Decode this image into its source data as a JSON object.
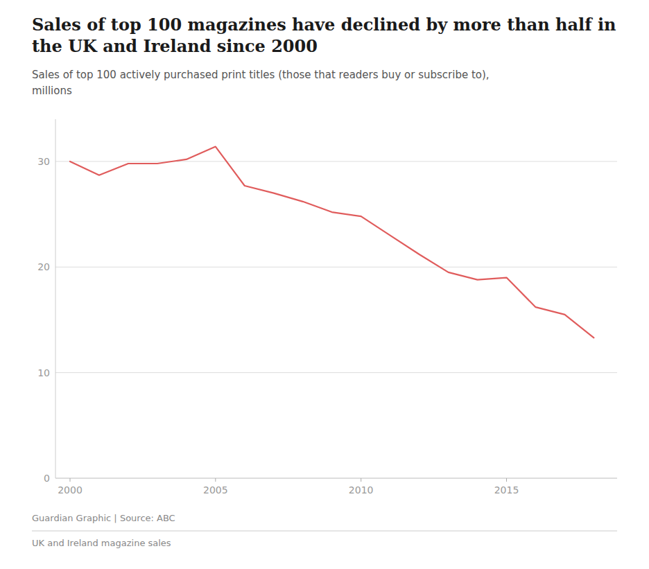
{
  "chart_data": {
    "type": "line",
    "title": "Sales of top 100 magazines have declined by more than half in the UK and Ireland since 2000",
    "subtitle": "Sales of top 100 actively purchased print titles (those that readers buy or subscribe to),\nmillions",
    "source": "Guardian Graphic | Source: ABC",
    "footer": "UK and Ireland magazine sales",
    "x": [
      2000,
      2001,
      2002,
      2003,
      2004,
      2005,
      2006,
      2007,
      2008,
      2009,
      2010,
      2011,
      2012,
      2013,
      2014,
      2015,
      2016,
      2017,
      2018
    ],
    "values": [
      30.0,
      28.7,
      29.8,
      29.8,
      30.2,
      31.4,
      27.7,
      27.0,
      26.2,
      25.2,
      24.8,
      23.0,
      21.2,
      19.5,
      18.8,
      19.0,
      16.2,
      15.5,
      13.3
    ],
    "color": "#e05c5c",
    "xlim": [
      1999.5,
      2018.8
    ],
    "xticks": [
      2000,
      2005,
      2010,
      2015
    ],
    "ylim": [
      0,
      34
    ],
    "yticks": [
      0,
      10,
      20,
      30
    ],
    "grid": true
  }
}
